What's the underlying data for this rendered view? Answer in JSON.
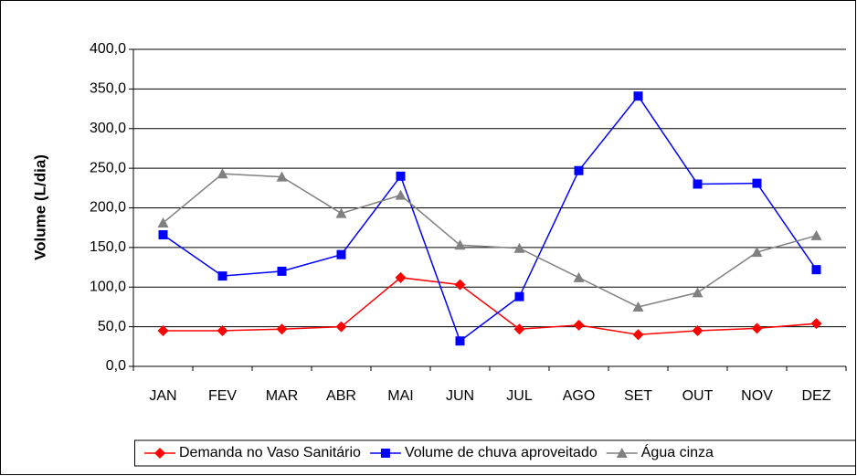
{
  "chart_data": {
    "type": "line",
    "ylabel": "Volume (L/dia)",
    "categories": [
      "JAN",
      "FEV",
      "MAR",
      "ABR",
      "MAI",
      "JUN",
      "JUL",
      "AGO",
      "SET",
      "OUT",
      "NOV",
      "DEZ"
    ],
    "series": [
      {
        "name": "Demanda no Vaso Sanitário",
        "color": "#ff0000",
        "marker": "diamond",
        "values": [
          45,
          45,
          47,
          50,
          112,
          103,
          47,
          52,
          40,
          45,
          48,
          54
        ]
      },
      {
        "name": "Volume de chuva aproveitado",
        "color": "#0000ff",
        "marker": "square",
        "values": [
          166,
          114,
          120,
          141,
          240,
          32,
          88,
          247,
          341,
          230,
          231,
          122
        ]
      },
      {
        "name": "Água cinza",
        "color": "#808080",
        "marker": "triangle",
        "values": [
          181,
          243,
          239,
          193,
          216,
          153,
          149,
          112,
          75,
          93,
          144,
          165
        ]
      }
    ],
    "ylim": [
      0,
      400
    ],
    "yticks": [
      {
        "value": 0,
        "label": "0,0"
      },
      {
        "value": 50,
        "label": "50,0"
      },
      {
        "value": 100,
        "label": "100,0"
      },
      {
        "value": 150,
        "label": "150,0"
      },
      {
        "value": 200,
        "label": "200,0"
      },
      {
        "value": 250,
        "label": "250,0"
      },
      {
        "value": 300,
        "label": "300,0"
      },
      {
        "value": 350,
        "label": "350,0"
      },
      {
        "value": 400,
        "label": "400,0"
      }
    ],
    "grid": true,
    "legend": "bottom"
  }
}
